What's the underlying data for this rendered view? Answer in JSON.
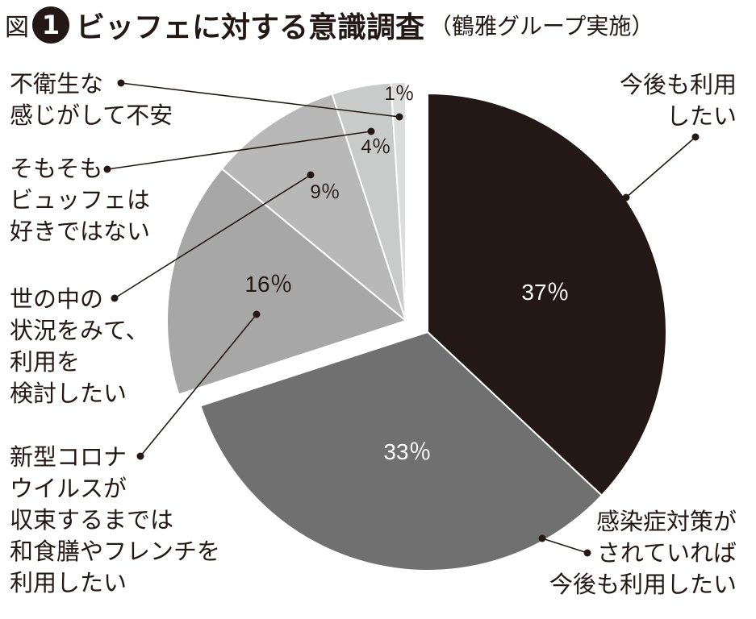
{
  "header": {
    "prefix": "図",
    "number": "1",
    "title": "ビッフェに対する意識調査",
    "source": "（鶴雅グループ実施）"
  },
  "chart_data": {
    "type": "pie",
    "title": "ビッフェに対する意識調査",
    "slices": [
      {
        "label": "今後も利用したい",
        "label_lines": [
          "今後も利用",
          "したい"
        ],
        "value": 37,
        "value_text": "37％",
        "color": "#231815"
      },
      {
        "label": "感染症対策がされていれば今後も利用したい",
        "label_lines": [
          "感染症対策が",
          "されていれば",
          "今後も利用したい"
        ],
        "value": 33,
        "value_text": "33％",
        "color": "#717071"
      },
      {
        "label": "新型コロナウイルスが収束するまでは和食膳やフレンチを利用したい",
        "label_lines": [
          "新型コロナ",
          "ウイルスが",
          "収束するまでは",
          "和食膳やフレンチを",
          "利用したい"
        ],
        "value": 16,
        "value_text": "16％",
        "color": "#a7a7a7"
      },
      {
        "label": "世の中の状況をみて、利用を検討したい",
        "label_lines": [
          "世の中の",
          "状況をみて、",
          "利用を",
          "検討したい"
        ],
        "value": 9,
        "value_text": "9％",
        "color": "#b8b8b8"
      },
      {
        "label": "そもそもビュッフェは好きではない",
        "label_lines": [
          "そもそも",
          "ビュッフェは",
          "好きではない"
        ],
        "value": 4,
        "value_text": "4％",
        "color": "#c9caca"
      },
      {
        "label": "不衛生な感じがして不安",
        "label_lines": [
          "不衛生な",
          "感じがして不安"
        ],
        "value": 1,
        "value_text": "1％",
        "color": "#dcdddd"
      }
    ]
  }
}
